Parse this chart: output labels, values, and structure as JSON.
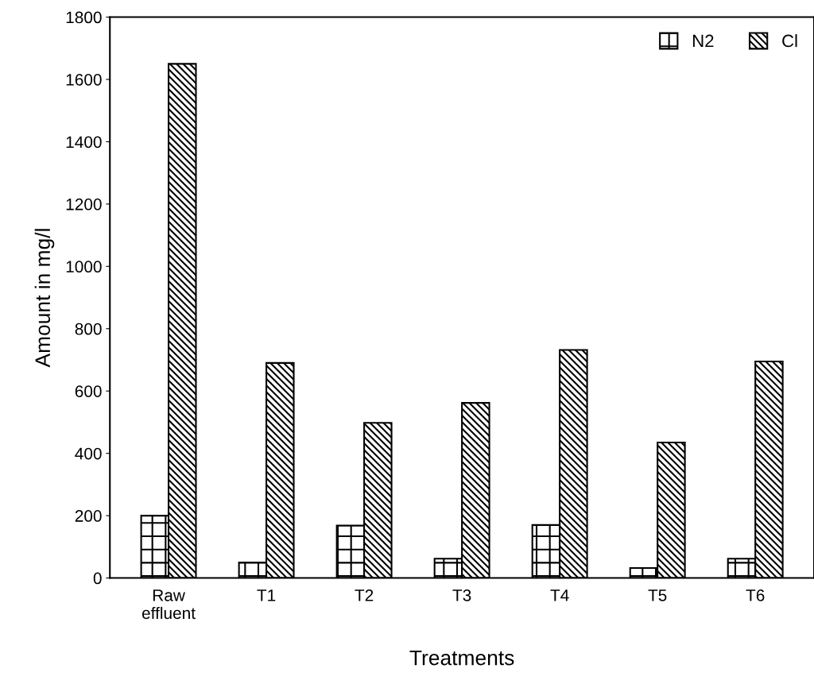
{
  "chart_data": {
    "type": "bar",
    "xlabel": "Treatments",
    "ylabel": "Amount in mg/l",
    "categories": [
      "Raw\neffluent",
      "T1",
      "T2",
      "T3",
      "T4",
      "T5",
      "T6"
    ],
    "series": [
      {
        "name": "N2",
        "color": "#000000",
        "values": [
          200,
          50,
          168,
          62,
          170,
          32,
          62
        ]
      },
      {
        "name": "Cl",
        "color": "#000000",
        "values": [
          1650,
          690,
          498,
          562,
          732,
          435,
          695
        ]
      }
    ],
    "ylim": [
      0,
      1800
    ],
    "yticks": [
      0,
      200,
      400,
      600,
      800,
      1000,
      1200,
      1400,
      1600,
      1800
    ],
    "grid": false,
    "legend": "top right"
  }
}
